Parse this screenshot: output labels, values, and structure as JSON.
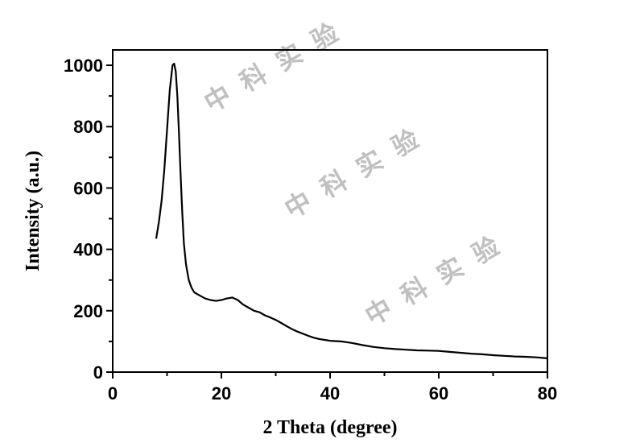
{
  "chart_data": {
    "type": "line",
    "title": "",
    "xlabel": "2 Theta (degree)",
    "ylabel": "Intensity (a.u.)",
    "xlim": [
      0,
      80
    ],
    "ylim": [
      0,
      1050
    ],
    "xticks": [
      0,
      20,
      40,
      60,
      80
    ],
    "yticks": [
      0,
      200,
      400,
      600,
      800,
      1000
    ],
    "xtick_labels": [
      "0",
      "20",
      "40",
      "60",
      "80"
    ],
    "ytick_labels": [
      "0",
      "200",
      "400",
      "600",
      "800",
      "1000"
    ],
    "grid": false,
    "legend": "none",
    "series": [
      {
        "color": "#000000",
        "x": [
          8,
          8.5,
          9,
          9.5,
          10,
          10.5,
          11,
          11.3,
          11.6,
          11.9,
          12.2,
          12.5,
          12.8,
          13.1,
          13.5,
          14,
          14.5,
          15,
          15.5,
          16,
          17,
          18,
          19,
          20,
          21,
          22,
          23,
          24,
          25,
          26,
          27,
          28,
          29,
          30,
          31,
          32,
          33,
          34,
          35,
          36,
          37,
          38,
          39,
          40,
          42,
          44,
          46,
          48,
          50,
          52,
          54,
          56,
          58,
          60,
          62,
          64,
          66,
          68,
          70,
          72,
          74,
          76,
          78,
          80
        ],
        "y": [
          435,
          490,
          560,
          660,
          790,
          920,
          1000,
          1005,
          980,
          900,
          780,
          640,
          520,
          420,
          350,
          300,
          275,
          260,
          255,
          250,
          240,
          235,
          232,
          235,
          240,
          243,
          235,
          220,
          210,
          200,
          195,
          185,
          178,
          170,
          160,
          150,
          140,
          132,
          125,
          118,
          112,
          108,
          105,
          102,
          100,
          95,
          88,
          82,
          78,
          75,
          73,
          71,
          70,
          69,
          66,
          63,
          60,
          58,
          55,
          53,
          51,
          50,
          48,
          45
        ]
      }
    ]
  },
  "watermarks": [
    "中 科 实 验",
    "中 科 实 验",
    "中 科 实 验"
  ]
}
